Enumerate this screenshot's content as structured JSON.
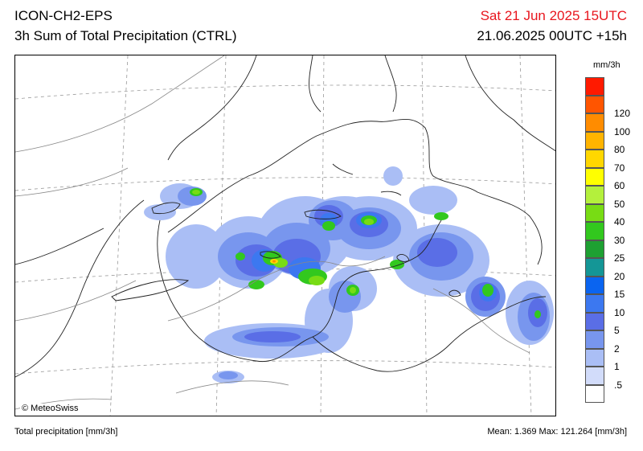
{
  "header": {
    "model": "ICON-CH2-EPS",
    "product": "3h Sum of Total Precipitation (CTRL)",
    "valid_time": "Sat 21 Jun 2025 15UTC",
    "init_time": "21.06.2025 00UTC +15h",
    "valid_color": "#e8161e"
  },
  "map": {
    "credit": "© MeteoSwiss"
  },
  "legend": {
    "unit": "mm/3h",
    "items": [
      {
        "label": "",
        "color": "#ff1a00"
      },
      {
        "label": "120",
        "color": "#ff5500"
      },
      {
        "label": "100",
        "color": "#ff8c00"
      },
      {
        "label": "80",
        "color": "#ffb400"
      },
      {
        "label": "70",
        "color": "#ffd700"
      },
      {
        "label": "60",
        "color": "#ffff00"
      },
      {
        "label": "50",
        "color": "#b4f03c"
      },
      {
        "label": "40",
        "color": "#78dc14"
      },
      {
        "label": "30",
        "color": "#32c81e"
      },
      {
        "label": "25",
        "color": "#1ea032"
      },
      {
        "label": "20",
        "color": "#149696"
      },
      {
        "label": "15",
        "color": "#0a64f0"
      },
      {
        "label": "10",
        "color": "#3c78f0"
      },
      {
        "label": "5",
        "color": "#5a6ee6"
      },
      {
        "label": "2",
        "color": "#7896ee"
      },
      {
        "label": "1",
        "color": "#aabef5"
      },
      {
        "label": ".5",
        "color": "#d2dcfa"
      },
      {
        "label": "",
        "color": "#ffffff"
      }
    ]
  },
  "footer": {
    "left": "Total precipitation [mm/3h]",
    "right": "Mean:   1.369 Max: 121.264 [mm/3h]"
  }
}
